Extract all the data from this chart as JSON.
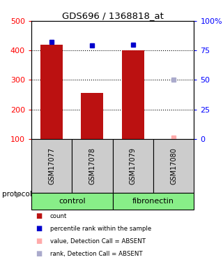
{
  "title": "GDS696 / 1368818_at",
  "samples": [
    "GSM17077",
    "GSM17078",
    "GSM17079",
    "GSM17080"
  ],
  "bar_values": [
    420,
    255,
    400,
    100
  ],
  "rank_values": [
    82,
    79,
    80,
    null
  ],
  "absent_value": [
    null,
    null,
    null,
    105
  ],
  "absent_rank": [
    null,
    null,
    null,
    50
  ],
  "ylim_left": [
    100,
    500
  ],
  "ylim_right": [
    0,
    100
  ],
  "yticks_left": [
    100,
    200,
    300,
    400,
    500
  ],
  "yticks_right": [
    0,
    25,
    50,
    75,
    100
  ],
  "ytick_labels_right": [
    "0",
    "25",
    "50",
    "75",
    "100%"
  ],
  "bar_color": "#bb1111",
  "rank_color": "#0000cc",
  "absent_value_color": "#ffaaaa",
  "absent_rank_color": "#aaaacc",
  "protocol_labels": [
    "control",
    "fibronectin"
  ],
  "protocol_color": "#88ee88",
  "sample_col_color": "#cccccc",
  "grid_ticks": [
    200,
    300,
    400
  ],
  "legend_items": [
    {
      "label": "count",
      "color": "#bb1111"
    },
    {
      "label": "percentile rank within the sample",
      "color": "#0000cc"
    },
    {
      "label": "value, Detection Call = ABSENT",
      "color": "#ffaaaa"
    },
    {
      "label": "rank, Detection Call = ABSENT",
      "color": "#aaaacc"
    }
  ]
}
